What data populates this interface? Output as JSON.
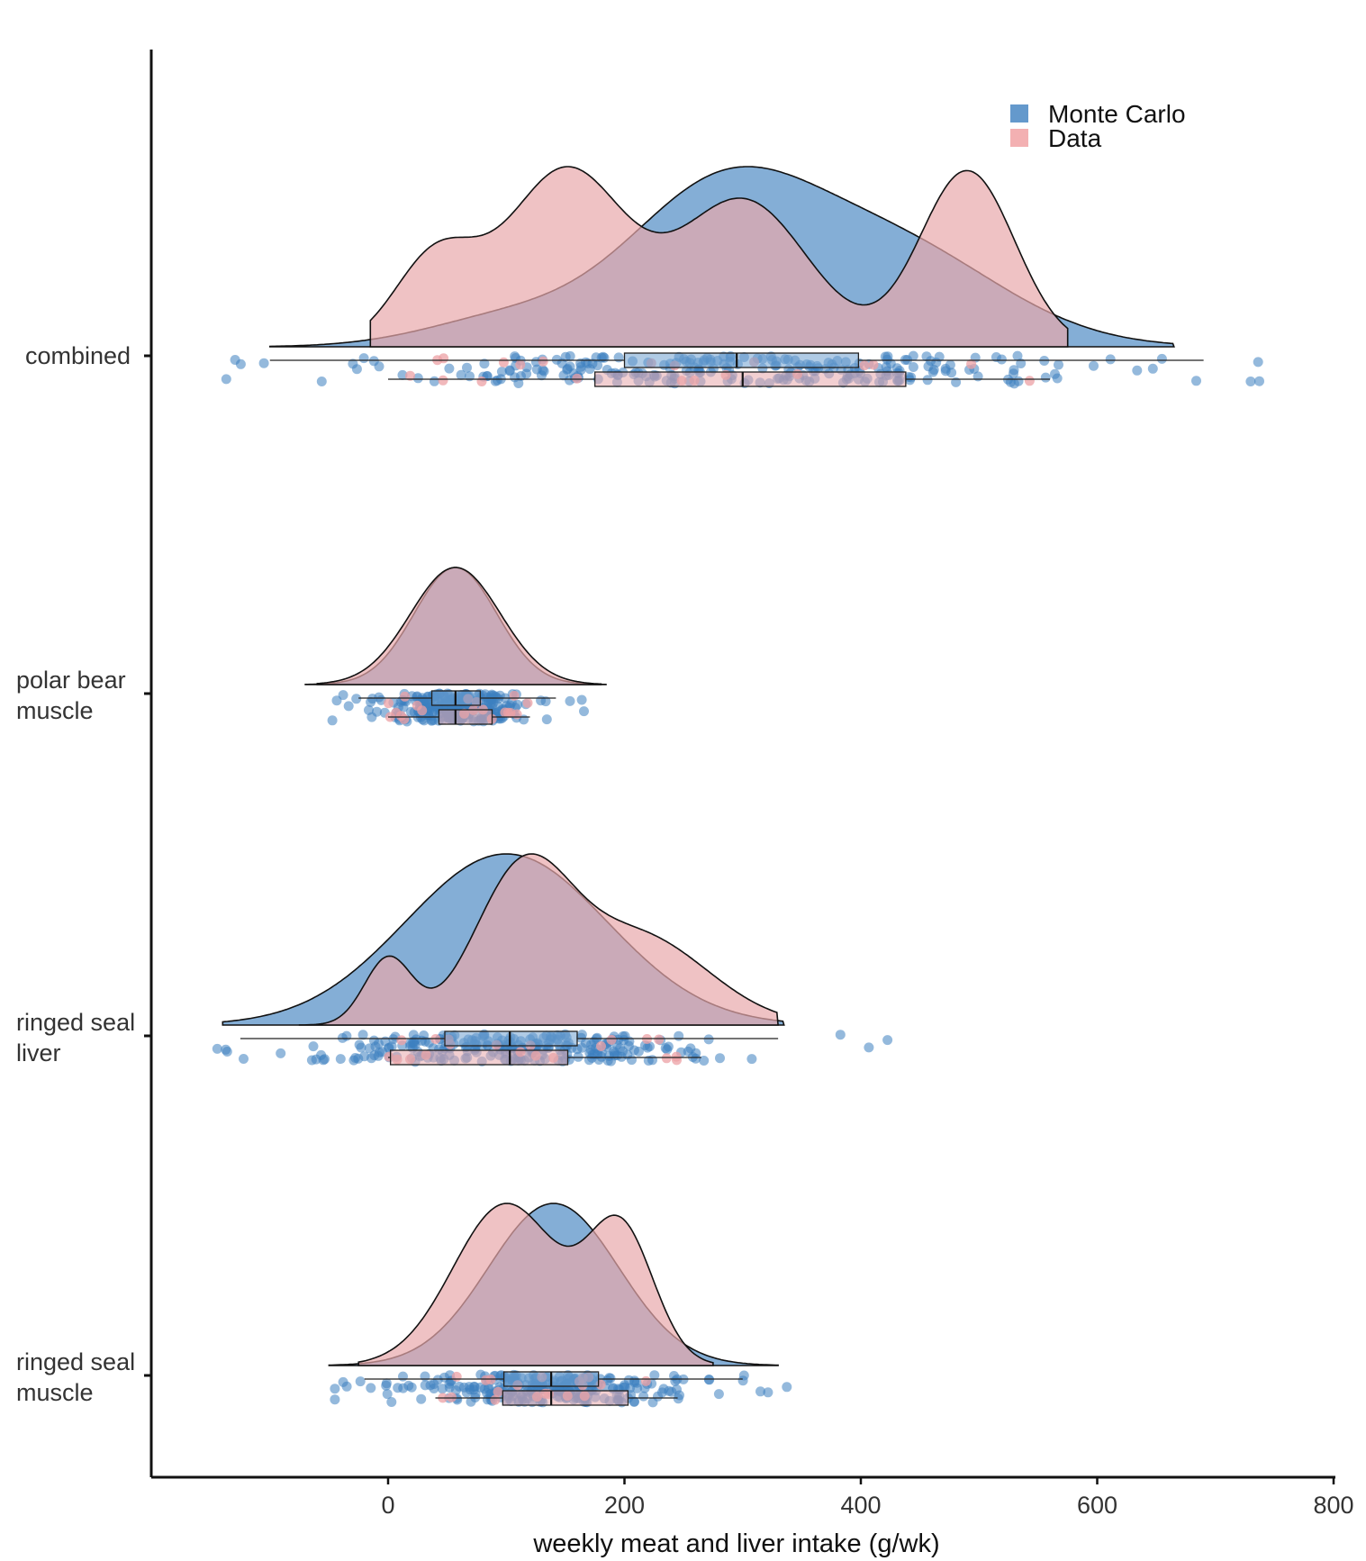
{
  "chart_data": {
    "type": "raincloud",
    "title": "",
    "xlabel": "weekly meat and liver intake (g/wk)",
    "ylabel": "",
    "xlim": [
      -200,
      800
    ],
    "xticks": [
      0,
      200,
      400,
      600,
      800
    ],
    "xtick_labels": [
      "0",
      "200",
      "400",
      "600",
      "800"
    ],
    "categories": [
      {
        "id": "combined",
        "lines": [
          "combined"
        ]
      },
      {
        "id": "polar-bear-muscle",
        "lines": [
          "polar bear",
          "muscle"
        ]
      },
      {
        "id": "ringed-seal-liver",
        "lines": [
          "ringed seal",
          "liver"
        ]
      },
      {
        "id": "ringed-seal-muscle",
        "lines": [
          "ringed seal",
          "muscle"
        ]
      }
    ],
    "legend": {
      "position": "top-right",
      "entries": [
        {
          "series": "mc",
          "label": "Monte Carlo",
          "color": "#3d7fbf"
        },
        {
          "series": "data",
          "label": "Data",
          "color": "#f2a7aa"
        }
      ]
    },
    "colors": {
      "mc_fill": "#6fa0cf",
      "data_fill": "#e8a8ab",
      "mc_point": "#3d7fbf",
      "data_point": "#eca0a4",
      "axis": "#111111"
    },
    "groups": [
      {
        "category": "combined",
        "density_scale": 0.2,
        "mc": {
          "range": [
            -100,
            665
          ],
          "components": [
            [
              0.55,
              280,
              80
            ],
            [
              0.35,
              430,
              90
            ],
            [
              0.1,
              100,
              70
            ]
          ],
          "box": {
            "q1": 200,
            "median": 295,
            "q3": 398,
            "whisker_low": -100,
            "whisker_high": 690
          },
          "points_range": [
            -185,
            765
          ]
        },
        "data": {
          "range": [
            -15,
            575
          ],
          "components": [
            [
              0.15,
              40,
              35
            ],
            [
              0.3,
              150,
              50
            ],
            [
              0.25,
              300,
              55
            ],
            [
              0.3,
              490,
              40
            ]
          ],
          "box": {
            "q1": 175,
            "median": 300,
            "q3": 438,
            "whisker_low": 0,
            "whisker_high": 560
          },
          "points_range": [
            0,
            560
          ]
        }
      },
      {
        "category": "polar-bear-muscle",
        "density_scale": 0.13,
        "mc": {
          "range": [
            -70,
            185
          ],
          "components": [
            [
              1.0,
              57,
              35
            ]
          ],
          "box": {
            "q1": 37,
            "median": 57,
            "q3": 78,
            "whisker_low": -25,
            "whisker_high": 142
          },
          "points_range": [
            -50,
            172
          ]
        },
        "data": {
          "range": [
            -60,
            180
          ],
          "components": [
            [
              1.0,
              57,
              38
            ]
          ],
          "box": {
            "q1": 43,
            "median": 57,
            "q3": 88,
            "whisker_low": 0,
            "whisker_high": 120
          },
          "points_range": [
            0,
            120
          ]
        }
      },
      {
        "category": "ringed-seal-liver",
        "density_scale": 0.19,
        "mc": {
          "range": [
            -140,
            335
          ],
          "components": [
            [
              1.0,
              100,
              85
            ]
          ],
          "box": {
            "q1": 48,
            "median": 103,
            "q3": 160,
            "whisker_low": -125,
            "whisker_high": 330
          },
          "points_range": [
            -147,
            440
          ]
        },
        "data": {
          "range": [
            -75,
            330
          ],
          "components": [
            [
              0.22,
              0,
              20
            ],
            [
              0.48,
              113,
              40
            ],
            [
              0.3,
              210,
              60
            ]
          ],
          "box": {
            "q1": 2,
            "median": 103,
            "q3": 152,
            "whisker_low": 0,
            "whisker_high": 265
          },
          "points_range": [
            0,
            265
          ]
        }
      },
      {
        "category": "ringed-seal-muscle",
        "density_scale": 0.18,
        "mc": {
          "range": [
            -50,
            330
          ],
          "components": [
            [
              1.0,
              140,
              55
            ]
          ],
          "box": {
            "q1": 98,
            "median": 138,
            "q3": 178,
            "whisker_low": -20,
            "whisker_high": 300
          },
          "points_range": [
            -45,
            350
          ]
        },
        "data": {
          "range": [
            -25,
            275
          ],
          "components": [
            [
              0.55,
              100,
              45
            ],
            [
              0.45,
              197,
              28
            ]
          ],
          "box": {
            "q1": 97,
            "median": 138,
            "q3": 203,
            "whisker_low": 40,
            "whisker_high": 245
          },
          "points_range": [
            40,
            245
          ]
        }
      }
    ]
  }
}
